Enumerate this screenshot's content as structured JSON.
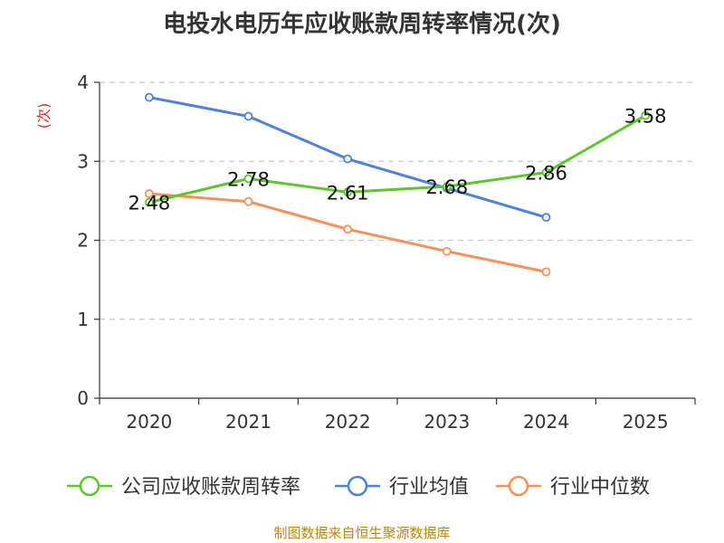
{
  "title": "电投水电历年应收账款周转率情况(次)",
  "source": "制图数据来自恒生聚源数据库",
  "chart_data": {
    "type": "line",
    "title": "电投水电历年应收账款周转率情况(次)",
    "xlabel": "",
    "ylabel": "(次)",
    "categories": [
      "2020",
      "2021",
      "2022",
      "2023",
      "2024",
      "2025"
    ],
    "ylim": [
      0,
      4
    ],
    "yticks": [
      "0",
      "1",
      "2",
      "3",
      "4"
    ],
    "grid": true,
    "legend_position": "bottom",
    "series": [
      {
        "name": "公司应收账款周转率",
        "color": "#5ec62c",
        "values": [
          2.48,
          2.78,
          2.61,
          2.68,
          2.86,
          3.58
        ],
        "labels": [
          "2.48",
          "2.78",
          "2.61",
          "2.68",
          "2.86",
          "3.58"
        ]
      },
      {
        "name": "行业均值",
        "color": "#4f81d9",
        "values": [
          3.81,
          3.57,
          3.03,
          2.66,
          2.29,
          null
        ]
      },
      {
        "name": "行业中位数",
        "color": "#f7905a",
        "values": [
          2.59,
          2.49,
          2.14,
          1.86,
          1.6,
          null
        ]
      }
    ]
  }
}
